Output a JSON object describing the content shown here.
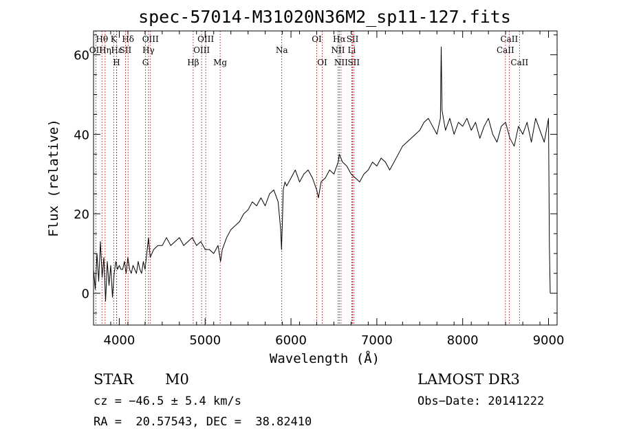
{
  "chart_data": {
    "type": "line",
    "title": "spec-57014-M31020N36M2_sp11-127.fits",
    "xlabel": "Wavelength (Å)",
    "ylabel": "Flux (relative)",
    "xlim": [
      3700,
      9100
    ],
    "ylim": [
      -8,
      66
    ],
    "xticks": [
      4000,
      5000,
      6000,
      7000,
      8000,
      9000
    ],
    "yticks": [
      0,
      20,
      40,
      60
    ],
    "grid": false,
    "series": [
      {
        "x": [
          3700,
          3720,
          3740,
          3760,
          3780,
          3800,
          3820,
          3840,
          3860,
          3880,
          3900,
          3920,
          3940,
          3960,
          3980,
          4000,
          4020,
          4040,
          4060,
          4080,
          4100,
          4120,
          4140,
          4160,
          4180,
          4200,
          4220,
          4240,
          4260,
          4280,
          4300,
          4320,
          4340,
          4360,
          4380,
          4400,
          4450,
          4500,
          4550,
          4600,
          4650,
          4700,
          4750,
          4800,
          4850,
          4900,
          4950,
          5000,
          5050,
          5100,
          5150,
          5180,
          5200,
          5250,
          5300,
          5350,
          5400,
          5450,
          5500,
          5550,
          5600,
          5650,
          5700,
          5750,
          5800,
          5850,
          5880,
          5890,
          5900,
          5910,
          5930,
          5950,
          6000,
          6050,
          6100,
          6150,
          6200,
          6250,
          6300,
          6320,
          6350,
          6400,
          6450,
          6500,
          6550,
          6563,
          6600,
          6650,
          6700,
          6750,
          6800,
          6850,
          6900,
          6950,
          7000,
          7050,
          7100,
          7150,
          7200,
          7250,
          7300,
          7350,
          7400,
          7450,
          7500,
          7550,
          7600,
          7650,
          7700,
          7740,
          7750,
          7760,
          7800,
          7850,
          7900,
          7950,
          8000,
          8050,
          8100,
          8150,
          8200,
          8250,
          8300,
          8350,
          8400,
          8450,
          8500,
          8550,
          8600,
          8650,
          8700,
          8750,
          8800,
          8850,
          8900,
          8950,
          9000,
          9010,
          9020
        ],
        "y": [
          6,
          1,
          10,
          3,
          13,
          4,
          9,
          -2,
          8,
          2,
          7,
          -1,
          5,
          8,
          6,
          7,
          6,
          6,
          8,
          5,
          9,
          6,
          5,
          7,
          6,
          5,
          8,
          6,
          5,
          8,
          6,
          10,
          14,
          9,
          10,
          11,
          12,
          12,
          14,
          12,
          13,
          14,
          12,
          13,
          14,
          12,
          13,
          11,
          11,
          10,
          12,
          8,
          11,
          14,
          16,
          17,
          18,
          20,
          21,
          23,
          22,
          24,
          22,
          25,
          26,
          23,
          16,
          11,
          18,
          26,
          28,
          27,
          29,
          31,
          28,
          30,
          31,
          29,
          26,
          24,
          28,
          29,
          31,
          30,
          33,
          35,
          33,
          32,
          30,
          29,
          28,
          30,
          31,
          33,
          32,
          34,
          33,
          31,
          33,
          35,
          37,
          38,
          39,
          40,
          41,
          43,
          44,
          42,
          40,
          44,
          62,
          46,
          41,
          44,
          40,
          43,
          42,
          44,
          41,
          43,
          39,
          42,
          44,
          40,
          38,
          42,
          43,
          39,
          37,
          42,
          40,
          43,
          38,
          44,
          41,
          38,
          44,
          12,
          0
        ]
      }
    ],
    "line_ids": [
      {
        "label": "Hθ",
        "wave": 3798,
        "row": 1
      },
      {
        "label": "OII",
        "wave": 3727,
        "row": 2
      },
      {
        "label": "Hη",
        "wave": 3835,
        "row": 2
      },
      {
        "label": "K",
        "wave": 3934,
        "row": 1
      },
      {
        "label": "Hε",
        "wave": 3970,
        "row": 2
      },
      {
        "label": "H",
        "wave": 3968,
        "row": 3
      },
      {
        "label": "SII",
        "wave": 4072,
        "row": 2
      },
      {
        "label": "Hδ",
        "wave": 4102,
        "row": 1
      },
      {
        "label": "OIII",
        "wave": 4363,
        "row": 1
      },
      {
        "label": "Hγ",
        "wave": 4340,
        "row": 2
      },
      {
        "label": "G",
        "wave": 4305,
        "row": 3
      },
      {
        "label": "OIII",
        "wave": 5007,
        "row": 1
      },
      {
        "label": "OIII",
        "wave": 4959,
        "row": 2
      },
      {
        "label": "Hβ",
        "wave": 4861,
        "row": 3
      },
      {
        "label": "Mg",
        "wave": 5175,
        "row": 3
      },
      {
        "label": "Na",
        "wave": 5893,
        "row": 2
      },
      {
        "label": "OI",
        "wave": 6300,
        "row": 1
      },
      {
        "label": "OI",
        "wave": 6364,
        "row": 3
      },
      {
        "label": "Hα",
        "wave": 6563,
        "row": 1
      },
      {
        "label": "NII",
        "wave": 6548,
        "row": 2
      },
      {
        "label": "NII",
        "wave": 6583,
        "row": 3
      },
      {
        "label": "SII",
        "wave": 6717,
        "row": 1
      },
      {
        "label": "Li",
        "wave": 6708,
        "row": 2
      },
      {
        "label": "SII",
        "wave": 6731,
        "row": 3
      },
      {
        "label": "CaII",
        "wave": 8542,
        "row": 1
      },
      {
        "label": "CaII",
        "wave": 8498,
        "row": 2
      },
      {
        "label": "CaII",
        "wave": 8662,
        "row": 3
      }
    ]
  },
  "info": {
    "class": "STAR",
    "subclass": "M0",
    "survey": "LAMOST DR3",
    "cz": "cz = −46.5 ± 5.4 km/s",
    "obsdate": "Obs−Date: 20141222",
    "coords": "RA =  20.57543, DEC =  38.82410"
  }
}
